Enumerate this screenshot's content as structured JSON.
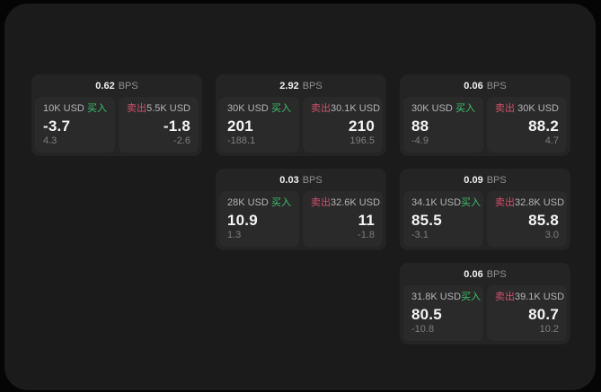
{
  "labels": {
    "bps_unit": "BPS",
    "buy": "买入",
    "sell": "卖出"
  },
  "colors": {
    "buy_green": "#3dc268",
    "sell_red": "#d34f6b",
    "panel_bg": "#1b1b1c",
    "card_bg": "#242425",
    "tile_bg": "#2a2a2b"
  },
  "cards": [
    {
      "row": 1,
      "col": 1,
      "bps": "0.62",
      "buy": {
        "size": "10K USD",
        "price": "-3.7",
        "delta": "4.3"
      },
      "sell": {
        "size": "5.5K USD",
        "price": "-1.8",
        "delta": "-2.6"
      }
    },
    {
      "row": 1,
      "col": 2,
      "bps": "2.92",
      "buy": {
        "size": "30K USD",
        "price": "201",
        "delta": "-188.1"
      },
      "sell": {
        "size": "30.1K USD",
        "price": "210",
        "delta": "196.5"
      }
    },
    {
      "row": 1,
      "col": 3,
      "bps": "0.06",
      "buy": {
        "size": "30K USD",
        "price": "88",
        "delta": "-4.9"
      },
      "sell": {
        "size": "30K USD",
        "price": "88.2",
        "delta": "4.7"
      }
    },
    {
      "row": 2,
      "col": 2,
      "bps": "0.03",
      "buy": {
        "size": "28K USD",
        "price": "10.9",
        "delta": "1.3"
      },
      "sell": {
        "size": "32.6K USD",
        "price": "11",
        "delta": "-1.8"
      }
    },
    {
      "row": 2,
      "col": 3,
      "bps": "0.09",
      "buy": {
        "size": "34.1K USD",
        "price": "85.5",
        "delta": "-3.1"
      },
      "sell": {
        "size": "32.8K USD",
        "price": "85.8",
        "delta": "3.0"
      }
    },
    {
      "row": 3,
      "col": 3,
      "bps": "0.06",
      "buy": {
        "size": "31.8K USD",
        "price": "80.5",
        "delta": "-10.8"
      },
      "sell": {
        "size": "39.1K USD",
        "price": "80.7",
        "delta": "10.2"
      }
    }
  ]
}
